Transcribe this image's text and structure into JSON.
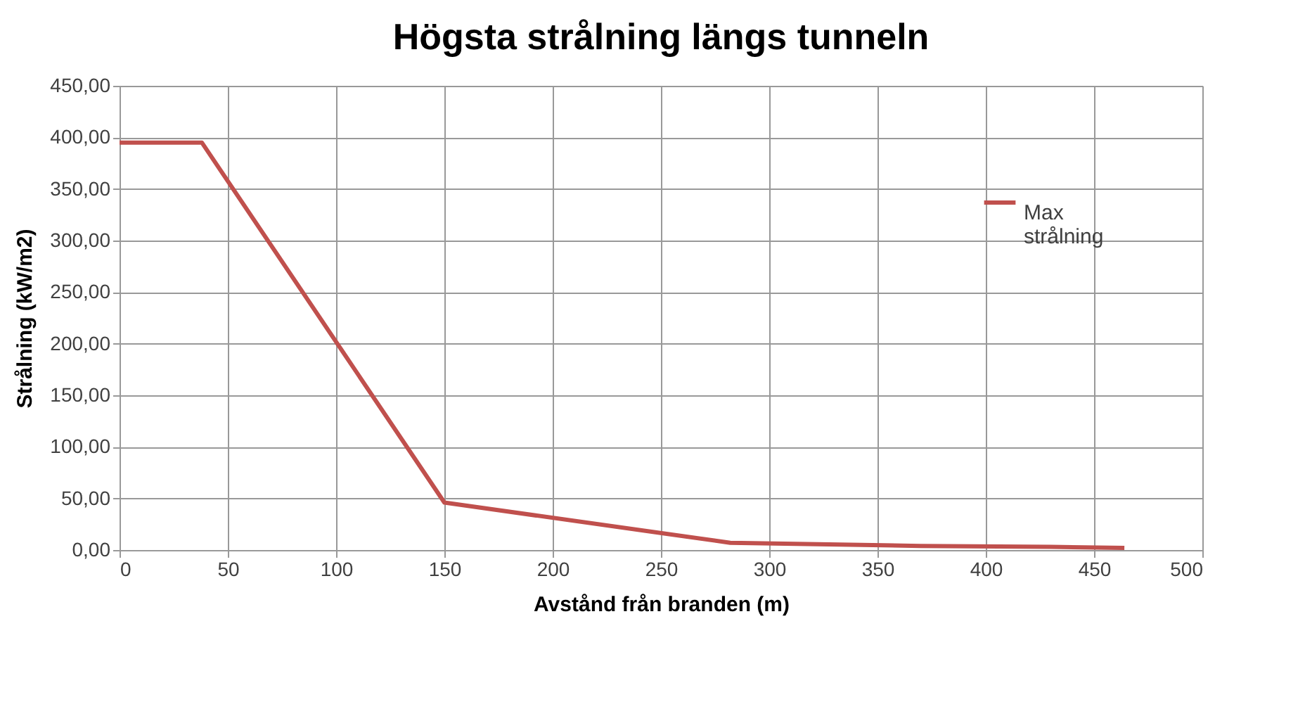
{
  "chart_data": {
    "type": "line",
    "title": "Högsta strålning längs tunneln",
    "xlabel": "Avstånd från branden (m)",
    "ylabel": "Strålning (kW/m2)",
    "x": [
      0,
      38,
      150,
      282,
      370,
      430,
      464
    ],
    "series": [
      {
        "name": "Max strålning",
        "color": "#c0504d",
        "values": [
          395,
          395,
          46,
          7,
          4,
          3,
          2
        ]
      }
    ],
    "xlim": [
      0,
      500
    ],
    "xticks": [
      0,
      50,
      100,
      150,
      200,
      250,
      300,
      350,
      400,
      450,
      500
    ],
    "ylim": [
      0,
      450
    ],
    "yticks": [
      {
        "value": 0,
        "label": "0,00"
      },
      {
        "value": 50,
        "label": "50,00"
      },
      {
        "value": 100,
        "label": "100,00"
      },
      {
        "value": 150,
        "label": "150,00"
      },
      {
        "value": 200,
        "label": "200,00"
      },
      {
        "value": 250,
        "label": "250,00"
      },
      {
        "value": 300,
        "label": "300,00"
      },
      {
        "value": 350,
        "label": "350,00"
      },
      {
        "value": 400,
        "label": "400,00"
      },
      {
        "value": 450,
        "label": "450,00"
      }
    ],
    "grid": true,
    "legend": "top right",
    "marker": "none",
    "line_style": "solid"
  }
}
